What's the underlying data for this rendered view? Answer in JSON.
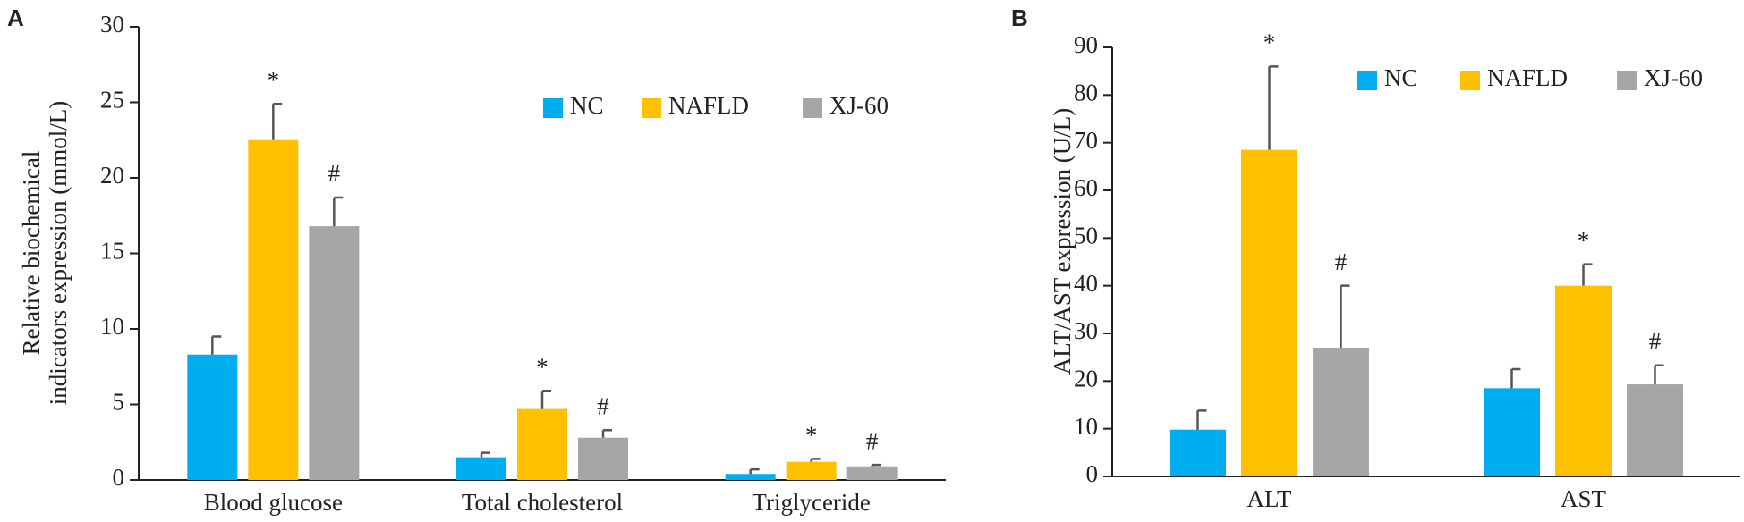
{
  "chart_data": [
    {
      "type": "bar",
      "panel": "A",
      "ylabel": [
        "Relative biochemical",
        "indicators expression (mmol/L)"
      ],
      "categories": [
        "Blood glucose",
        "Total cholesterol",
        "Triglyceride"
      ],
      "series": [
        {
          "name": "NC",
          "color": "#00aeef",
          "values": [
            8.3,
            1.5,
            0.4
          ],
          "errors": [
            1.2,
            0.3,
            0.3
          ]
        },
        {
          "name": "NAFLD",
          "color": "#ffc000",
          "values": [
            22.5,
            4.7,
            1.2
          ],
          "errors": [
            2.4,
            1.2,
            0.2
          ],
          "annotations": [
            "*",
            "*",
            "*"
          ]
        },
        {
          "name": "XJ-60",
          "color": "#a6a6a6",
          "values": [
            16.8,
            2.8,
            0.9
          ],
          "errors": [
            1.9,
            0.5,
            0.1
          ],
          "annotations": [
            "#",
            "#",
            "#"
          ]
        }
      ],
      "ylim": [
        0,
        30
      ],
      "yticks": [
        0,
        5,
        10,
        15,
        20,
        25,
        30
      ],
      "grid": false,
      "legend": "upper right"
    },
    {
      "type": "bar",
      "panel": "B",
      "ylabel": [
        "ALT/AST expression (U/L)"
      ],
      "categories": [
        "ALT",
        "AST"
      ],
      "series": [
        {
          "name": "NC",
          "color": "#00aeef",
          "values": [
            9.8,
            18.5
          ],
          "errors": [
            4,
            4
          ]
        },
        {
          "name": "NAFLD",
          "color": "#ffc000",
          "values": [
            68.5,
            40
          ],
          "errors": [
            17.5,
            4.5
          ],
          "annotations": [
            "*",
            "*"
          ]
        },
        {
          "name": "XJ-60",
          "color": "#a6a6a6",
          "values": [
            27,
            19.3
          ],
          "errors": [
            13,
            4
          ],
          "annotations": [
            "#",
            "#"
          ]
        }
      ],
      "ylim": [
        0,
        90
      ],
      "yticks": [
        0,
        10,
        20,
        30,
        40,
        50,
        60,
        70,
        80,
        90
      ],
      "grid": false,
      "legend": "upper right"
    }
  ]
}
